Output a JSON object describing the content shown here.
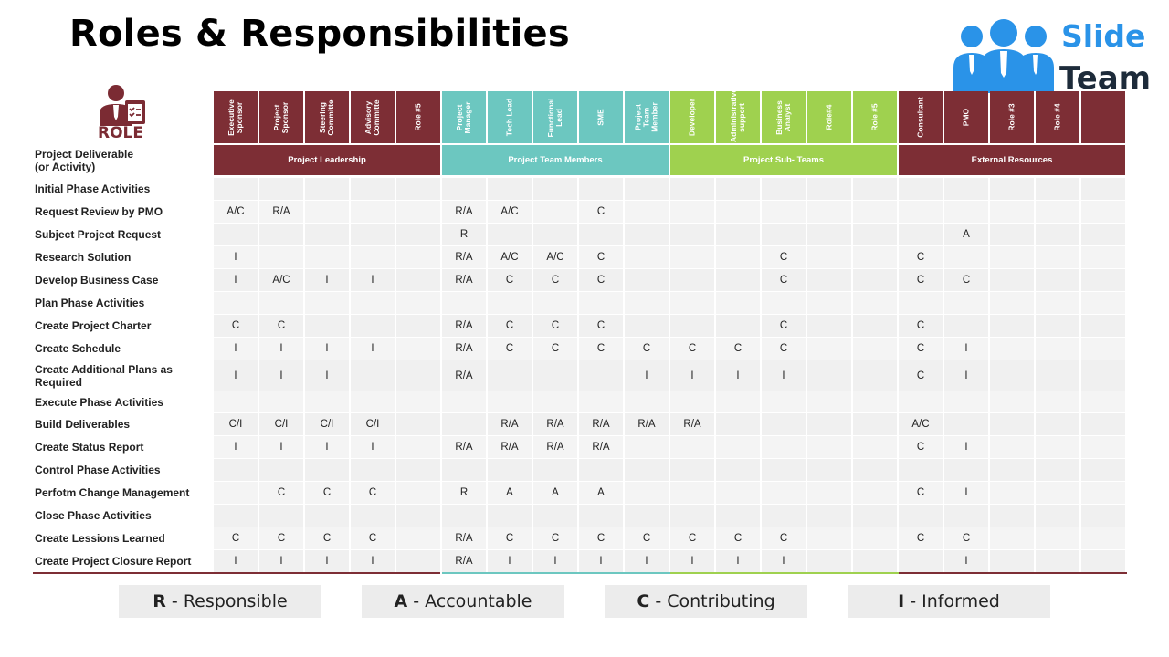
{
  "title": "Roles & Responsibilities",
  "logo": {
    "line1": "Slide",
    "line2": "Team",
    "color": "#2a93e8"
  },
  "role_label": "ROLE",
  "deliverable_header": [
    "Project Deliverable",
    "(or Activity)"
  ],
  "groups": [
    {
      "name": "Project Leadership",
      "color": "#7d2e35"
    },
    {
      "name": "Project Team Members",
      "color": "#6cc7c0"
    },
    {
      "name": "Project Sub- Teams",
      "color": "#9fd14f"
    },
    {
      "name": "External Resources",
      "color": "#7d2e35"
    }
  ],
  "columns": [
    [
      "Executive Sponsor",
      "Project Sponsor",
      "Steering Committe",
      "Advisory Committe",
      "Role #5"
    ],
    [
      "Project Manager",
      "Tech Lead",
      "Functional Lead",
      "SME",
      "Project Team Member"
    ],
    [
      "Developer",
      "Administrative support",
      "Business Analyst",
      "Role#4",
      "Role #5"
    ],
    [
      "Consultant",
      "PMO",
      "Role #3",
      "Role #4",
      ""
    ]
  ],
  "rows": [
    {
      "label": "Initial Phase Activities",
      "values": [
        "",
        "",
        "",
        "",
        "",
        "",
        "",
        "",
        "",
        "",
        "",
        "",
        "",
        "",
        "",
        "",
        "",
        "",
        "",
        ""
      ]
    },
    {
      "label": "Request Review by PMO",
      "values": [
        "A/C",
        "R/A",
        "",
        "",
        "",
        "R/A",
        "A/C",
        "",
        "C",
        "",
        "",
        "",
        "",
        "",
        "",
        "",
        "",
        "",
        "",
        ""
      ]
    },
    {
      "label": "Subject Project Request",
      "values": [
        "",
        "",
        "",
        "",
        "",
        "R",
        "",
        "",
        "",
        "",
        "",
        "",
        "",
        "",
        "",
        "",
        "A",
        "",
        "",
        ""
      ]
    },
    {
      "label": "Research Solution",
      "values": [
        "I",
        "",
        "",
        "",
        "",
        "R/A",
        "A/C",
        "A/C",
        "C",
        "",
        "",
        "",
        "C",
        "",
        "",
        "C",
        "",
        "",
        "",
        ""
      ]
    },
    {
      "label": "Develop Business Case",
      "values": [
        "I",
        "A/C",
        "I",
        "I",
        "",
        "R/A",
        "C",
        "C",
        "C",
        "",
        "",
        "",
        "C",
        "",
        "",
        "C",
        "C",
        "",
        "",
        ""
      ]
    },
    {
      "label": "Plan Phase Activities",
      "values": [
        "",
        "",
        "",
        "",
        "",
        "",
        "",
        "",
        "",
        "",
        "",
        "",
        "",
        "",
        "",
        "",
        "",
        "",
        "",
        ""
      ]
    },
    {
      "label": "Create Project Charter",
      "values": [
        "C",
        "C",
        "",
        "",
        "",
        "R/A",
        "C",
        "C",
        "C",
        "",
        "",
        "",
        "C",
        "",
        "",
        "C",
        "",
        "",
        "",
        ""
      ]
    },
    {
      "label": "Create Schedule",
      "values": [
        "I",
        "I",
        "I",
        "I",
        "",
        "R/A",
        "C",
        "C",
        "C",
        "C",
        "C",
        "C",
        "C",
        "",
        "",
        "C",
        "I",
        "",
        "",
        ""
      ]
    },
    {
      "label": "Create Additional Plans as Required",
      "values": [
        "I",
        "I",
        "I",
        "",
        "",
        "R/A",
        "",
        "",
        "",
        "I",
        "I",
        "I",
        "I",
        "",
        "",
        "C",
        "I",
        "",
        "",
        ""
      ]
    },
    {
      "label": "Execute Phase Activities",
      "values": [
        "",
        "",
        "",
        "",
        "",
        "",
        "",
        "",
        "",
        "",
        "",
        "",
        "",
        "",
        "",
        "",
        "",
        "",
        "",
        ""
      ]
    },
    {
      "label": "Build Deliverables",
      "values": [
        "C/I",
        "C/I",
        "C/I",
        "C/I",
        "",
        "",
        "R/A",
        "R/A",
        "R/A",
        "R/A",
        "R/A",
        "",
        "",
        "",
        "",
        "A/C",
        "",
        "",
        "",
        ""
      ]
    },
    {
      "label": "Create Status Report",
      "values": [
        "I",
        "I",
        "I",
        "I",
        "",
        "R/A",
        "R/A",
        "R/A",
        "R/A",
        "",
        "",
        "",
        "",
        "",
        "",
        "C",
        "I",
        "",
        "",
        ""
      ]
    },
    {
      "label": "Control Phase Activities",
      "values": [
        "",
        "",
        "",
        "",
        "",
        "",
        "",
        "",
        "",
        "",
        "",
        "",
        "",
        "",
        "",
        "",
        "",
        "",
        "",
        ""
      ]
    },
    {
      "label": "Perfotm Change Management",
      "values": [
        "",
        "C",
        "C",
        "C",
        "",
        "R",
        "A",
        "A",
        "A",
        "",
        "",
        "",
        "",
        "",
        "",
        "C",
        "I",
        "",
        "",
        ""
      ]
    },
    {
      "label": "Close Phase Activities",
      "values": [
        "",
        "",
        "",
        "",
        "",
        "",
        "",
        "",
        "",
        "",
        "",
        "",
        "",
        "",
        "",
        "",
        "",
        "",
        "",
        ""
      ]
    },
    {
      "label": "Create Lessions Learned",
      "values": [
        "C",
        "C",
        "C",
        "C",
        "",
        "R/A",
        "C",
        "C",
        "C",
        "C",
        "C",
        "C",
        "C",
        "",
        "",
        "C",
        "C",
        "",
        "",
        ""
      ]
    },
    {
      "label": "Create Project Closure Report",
      "values": [
        "I",
        "I",
        "I",
        "I",
        "",
        "R/A",
        "I",
        "I",
        "I",
        "I",
        "I",
        "I",
        "I",
        "",
        "",
        "",
        "I",
        "",
        "",
        ""
      ]
    }
  ],
  "legend": [
    {
      "key": "R",
      "text": "Responsible"
    },
    {
      "key": "A",
      "text": "Accountable"
    },
    {
      "key": "C",
      "text": "Contributing"
    },
    {
      "key": "I",
      "text": "Informed"
    }
  ]
}
